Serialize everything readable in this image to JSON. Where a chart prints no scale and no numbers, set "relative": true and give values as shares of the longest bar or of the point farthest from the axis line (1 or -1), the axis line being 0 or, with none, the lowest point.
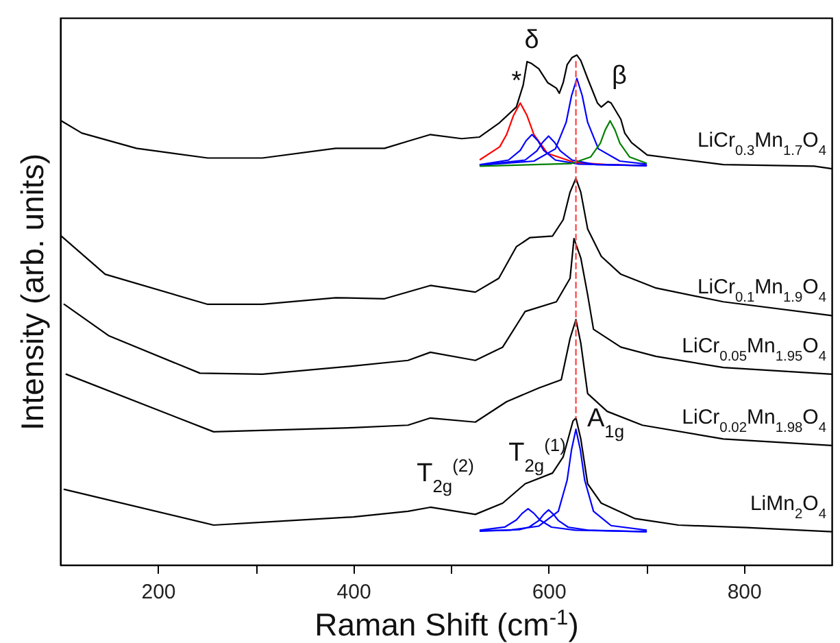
{
  "chart_data": {
    "type": "line",
    "relative": true,
    "xlabel": "Raman Shift (cm$^{-1}$)",
    "ylabel": "Intensity (arb. units)",
    "xlim": [
      100,
      890
    ],
    "xticks": [
      200,
      {
        "value": 300,
        "label": null
      },
      400,
      {
        "value": 500,
        "label": null
      },
      600,
      {
        "value": 700,
        "label": null
      },
      800
    ],
    "series": [
      {
        "name": "LiCr$_{0.3}$Mn$_{1.7}$O$_{4}$",
        "color": "#000000",
        "x": [
          101,
          122,
          178,
          251,
          307,
          382,
          432,
          456,
          479,
          511,
          529,
          549,
          567,
          574,
          578,
          582,
          590,
          599,
          608,
          611,
          615,
          619,
          624,
          629,
          633,
          640,
          650,
          654,
          661,
          664,
          674,
          678,
          685,
          701,
          733,
          779,
          872,
          890
        ],
        "values": [
          0.871,
          0.847,
          0.817,
          0.798,
          0.798,
          0.817,
          0.817,
          0.831,
          0.844,
          0.836,
          0.839,
          0.866,
          0.898,
          0.941,
          0.987,
          0.984,
          0.973,
          0.946,
          0.935,
          0.925,
          0.946,
          0.981,
          0.995,
          1.0,
          0.989,
          0.954,
          0.906,
          0.898,
          0.909,
          0.906,
          0.874,
          0.847,
          0.828,
          0.804,
          0.796,
          0.785,
          0.782,
          0.777
        ]
      },
      {
        "name": "LiCr$_{0.1}$Mn$_{1.9}$O$_{4}$",
        "color": "#000000",
        "x": [
          101,
          146,
          251,
          307,
          382,
          432,
          479,
          525,
          549,
          567,
          581,
          604,
          615,
          622,
          628,
          633,
          640,
          654,
          674,
          710,
          779,
          890
        ],
        "values": [
          0.645,
          0.57,
          0.511,
          0.511,
          0.524,
          0.522,
          0.548,
          0.535,
          0.562,
          0.624,
          0.642,
          0.645,
          0.677,
          0.731,
          0.758,
          0.731,
          0.659,
          0.605,
          0.57,
          0.543,
          0.516,
          0.489
        ]
      },
      {
        "name": "LiCr$_{0.05}$Mn$_{1.95}$O$_{4}$",
        "color": "#000000",
        "x": [
          104,
          150,
          243,
          307,
          400,
          456,
          479,
          525,
          553,
          576,
          608,
          622,
          626,
          633,
          640,
          646,
          674,
          710,
          779,
          890
        ],
        "values": [
          0.511,
          0.449,
          0.376,
          0.374,
          0.39,
          0.401,
          0.417,
          0.401,
          0.427,
          0.497,
          0.516,
          0.562,
          0.64,
          0.602,
          0.53,
          0.462,
          0.427,
          0.409,
          0.387,
          0.374
        ]
      },
      {
        "name": "LiCr$_{0.02}$Mn$_{1.98}$O$_{4}$",
        "color": "#000000",
        "x": [
          106,
          257,
          400,
          456,
          479,
          525,
          557,
          590,
          613,
          622,
          628,
          633,
          640,
          660,
          696,
          779,
          890
        ],
        "values": [
          0.374,
          0.261,
          0.269,
          0.274,
          0.288,
          0.28,
          0.32,
          0.347,
          0.363,
          0.444,
          0.481,
          0.435,
          0.336,
          0.301,
          0.274,
          0.247,
          0.234
        ]
      },
      {
        "name": "LiMn$_{2}$O$_{4}$",
        "color": "#000000",
        "x": [
          104,
          257,
          400,
          456,
          479,
          525,
          553,
          576,
          604,
          615,
          625,
          628,
          633,
          640,
          654,
          688,
          733,
          803,
          890
        ],
        "values": [
          0.148,
          0.078,
          0.094,
          0.105,
          0.113,
          0.099,
          0.121,
          0.159,
          0.18,
          0.212,
          0.282,
          0.288,
          0.247,
          0.159,
          0.121,
          0.091,
          0.078,
          0.073,
          0.065
        ]
      },
      {
        "color": "#ff0000",
        "x": [
          530,
          550,
          557,
          564,
          571,
          578,
          585,
          599,
          627,
          660,
          700
        ],
        "values": [
          0.795,
          0.82,
          0.844,
          0.881,
          0.906,
          0.881,
          0.844,
          0.807,
          0.789,
          0.785,
          0.783
        ]
      },
      {
        "color": "#0000ff",
        "x": [
          530,
          559,
          571,
          577,
          583,
          589,
          595,
          607,
          631,
          700
        ],
        "values": [
          0.785,
          0.794,
          0.813,
          0.832,
          0.844,
          0.832,
          0.813,
          0.794,
          0.786,
          0.783
        ]
      },
      {
        "color": "#0000ff",
        "x": [
          530,
          576,
          588,
          594,
          600,
          606,
          612,
          624,
          648,
          700
        ],
        "values": [
          0.784,
          0.794,
          0.812,
          0.829,
          0.841,
          0.829,
          0.812,
          0.794,
          0.785,
          0.783
        ]
      },
      {
        "color": "#0000ff",
        "x": [
          530,
          585,
          607,
          618,
          623.5,
          629,
          634.5,
          640,
          651,
          673,
          700
        ],
        "values": [
          0.784,
          0.792,
          0.816,
          0.868,
          0.92,
          0.954,
          0.92,
          0.868,
          0.816,
          0.792,
          0.786
        ]
      },
      {
        "color": "#008000",
        "x": [
          530,
          623,
          643,
          653,
          658,
          663,
          668,
          673,
          683,
          700
        ],
        "values": [
          0.782,
          0.787,
          0.8,
          0.827,
          0.853,
          0.871,
          0.853,
          0.827,
          0.8,
          0.788
        ]
      },
      {
        "color": "#0000ff",
        "x": [
          530,
          555,
          567,
          573,
          579,
          585,
          591,
          603,
          627,
          700
        ],
        "values": [
          0.068,
          0.074,
          0.088,
          0.101,
          0.11,
          0.101,
          0.088,
          0.074,
          0.068,
          0.065
        ]
      },
      {
        "color": "#0000ff",
        "x": [
          530,
          570,
          580,
          590,
          595,
          600,
          605,
          610,
          620,
          640,
          700
        ],
        "values": [
          0.066,
          0.069,
          0.074,
          0.087,
          0.099,
          0.108,
          0.099,
          0.087,
          0.074,
          0.068,
          0.065
        ]
      },
      {
        "color": "#0000ff",
        "x": [
          530,
          560,
          590,
          610,
          619,
          623.5,
          628,
          632.5,
          637,
          646,
          664,
          700
        ],
        "values": [
          0.067,
          0.068,
          0.076,
          0.105,
          0.166,
          0.226,
          0.266,
          0.226,
          0.166,
          0.105,
          0.077,
          0.068
        ]
      },
      {
        "color": "#ff4040",
        "line_style": "dashed",
        "x": [
          628,
          628
        ],
        "values": [
          0.987,
          0.288
        ]
      }
    ],
    "annotations": [
      "δ",
      "*",
      "β",
      "T$_{2g}$$^{(2)}$",
      "T$_{2g}$$^{(1)}$",
      "A$_{1g}$"
    ]
  }
}
